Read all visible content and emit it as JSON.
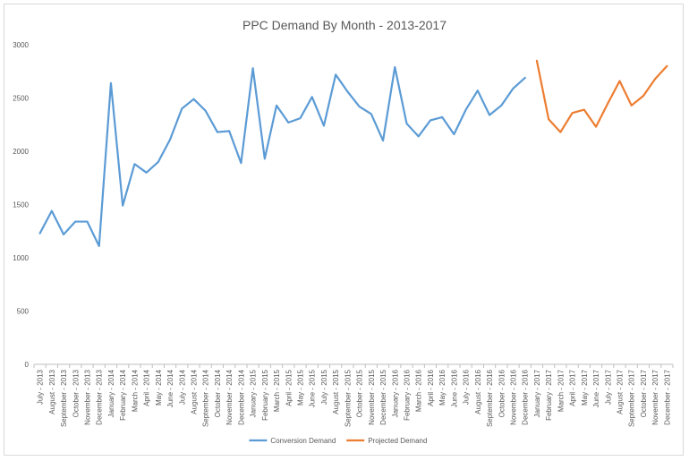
{
  "chart_data": {
    "type": "line",
    "title": "PPC Demand By Month - 2013-2017",
    "xlabel": "",
    "ylabel": "",
    "ylim": [
      0,
      3000
    ],
    "yticks": [
      0,
      500,
      1000,
      1500,
      2000,
      2500,
      3000
    ],
    "grid": false,
    "legend": "bottom",
    "categories": [
      "July - 2013",
      "August - 2013",
      "September - 2013",
      "October - 2013",
      "November - 2013",
      "December - 2013",
      "January - 2014",
      "February - 2014",
      "March - 2014",
      "April - 2014",
      "May - 2014",
      "June - 2014",
      "July - 2014",
      "August - 2014",
      "September - 2014",
      "October - 2014",
      "November - 2014",
      "December - 2014",
      "January - 2015",
      "February - 2015",
      "March - 2015",
      "April - 2015",
      "May - 2015",
      "June - 2015",
      "July - 2015",
      "August - 2015",
      "September - 2015",
      "October - 2015",
      "November - 2015",
      "December - 2015",
      "January - 2016",
      "February - 2016",
      "March - 2016",
      "April - 2016",
      "May - 2016",
      "June - 2016",
      "July - 2016",
      "August - 2016",
      "September - 2016",
      "October - 2016",
      "November - 2016",
      "December - 2016",
      "January - 2017",
      "February - 2017",
      "March - 2017",
      "April - 2017",
      "May - 2017",
      "June - 2017",
      "July - 2017",
      "August - 2017",
      "September - 2017",
      "October - 2017",
      "November - 2017",
      "December - 2017"
    ],
    "series": [
      {
        "name": "Conversion Demand",
        "color": "#5b9bd5",
        "values": [
          1230,
          1440,
          1220,
          1340,
          1340,
          1110,
          2640,
          1490,
          1880,
          1800,
          1900,
          2110,
          2400,
          2490,
          2380,
          2180,
          2190,
          1890,
          2780,
          1930,
          2430,
          2270,
          2310,
          2510,
          2240,
          2720,
          2560,
          2420,
          2350,
          2100,
          2790,
          2260,
          2140,
          2290,
          2320,
          2160,
          2390,
          2570,
          2340,
          2430,
          2590,
          2690,
          null,
          null,
          null,
          null,
          null,
          null,
          null,
          null,
          null,
          null,
          null,
          null
        ]
      },
      {
        "name": "Projected Demand",
        "color": "#ed7d31",
        "values": [
          null,
          null,
          null,
          null,
          null,
          null,
          null,
          null,
          null,
          null,
          null,
          null,
          null,
          null,
          null,
          null,
          null,
          null,
          null,
          null,
          null,
          null,
          null,
          null,
          null,
          null,
          null,
          null,
          null,
          null,
          null,
          null,
          null,
          null,
          null,
          null,
          null,
          null,
          null,
          null,
          null,
          null,
          2850,
          2300,
          2180,
          2360,
          2390,
          2230,
          2450,
          2660,
          2430,
          2520,
          2680,
          2800
        ]
      }
    ]
  }
}
